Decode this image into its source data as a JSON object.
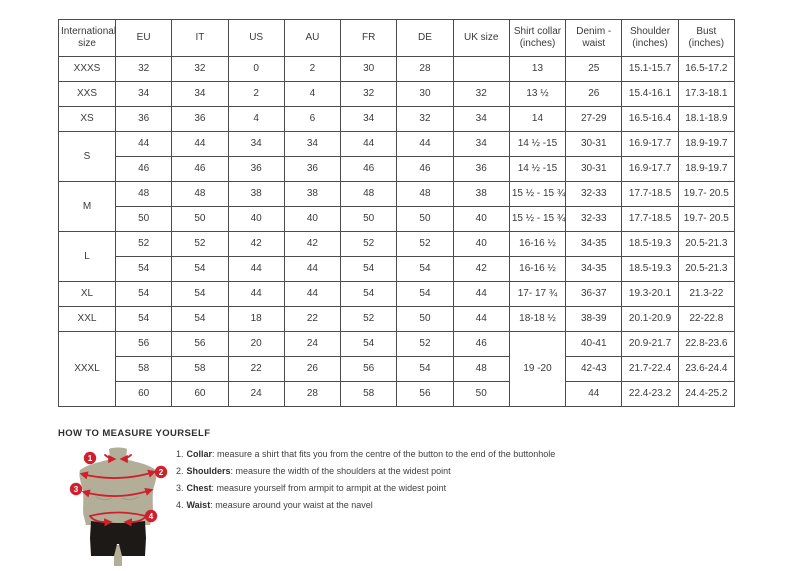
{
  "size_chart": {
    "columns": [
      "International size",
      "EU",
      "IT",
      "US",
      "AU",
      "FR",
      "DE",
      "UK size",
      "Shirt collar (inches)",
      "Denim - waist",
      "Shoulder (inches)",
      "Bust (inches)"
    ],
    "rows": [
      [
        {
          "text": "XXXS"
        },
        {
          "text": "32"
        },
        {
          "text": "32"
        },
        {
          "text": "0"
        },
        {
          "text": "2"
        },
        {
          "text": "30"
        },
        {
          "text": "28"
        },
        {
          "text": ""
        },
        {
          "text": "13"
        },
        {
          "text": "25"
        },
        {
          "text": "15.1-15.7"
        },
        {
          "text": "16.5-17.2"
        }
      ],
      [
        {
          "text": "XXS"
        },
        {
          "text": "34"
        },
        {
          "text": "34"
        },
        {
          "text": "2"
        },
        {
          "text": "4"
        },
        {
          "text": "32"
        },
        {
          "text": "30"
        },
        {
          "text": "32"
        },
        {
          "text": "13 ½"
        },
        {
          "text": "26"
        },
        {
          "text": "15.4-16.1"
        },
        {
          "text": "17.3-18.1"
        }
      ],
      [
        {
          "text": "XS"
        },
        {
          "text": "36"
        },
        {
          "text": "36"
        },
        {
          "text": "4"
        },
        {
          "text": "6"
        },
        {
          "text": "34"
        },
        {
          "text": "32"
        },
        {
          "text": "34"
        },
        {
          "text": "14"
        },
        {
          "text": "27-29"
        },
        {
          "text": "16.5-16.4"
        },
        {
          "text": "18.1-18.9"
        }
      ],
      [
        {
          "text": "S",
          "rowspan": 2
        },
        {
          "text": "44"
        },
        {
          "text": "44"
        },
        {
          "text": "34"
        },
        {
          "text": "34"
        },
        {
          "text": "44"
        },
        {
          "text": "44"
        },
        {
          "text": "34"
        },
        {
          "text": "14 ½ -15"
        },
        {
          "text": "30-31"
        },
        {
          "text": "16.9-17.7"
        },
        {
          "text": "18.9-19.7"
        }
      ],
      [
        {
          "text": "46"
        },
        {
          "text": "46"
        },
        {
          "text": "36"
        },
        {
          "text": "36"
        },
        {
          "text": "46"
        },
        {
          "text": "46"
        },
        {
          "text": "36"
        },
        {
          "text": "14 ½ -15"
        },
        {
          "text": "30-31"
        },
        {
          "text": "16.9-17.7"
        },
        {
          "text": "18.9-19.7"
        }
      ],
      [
        {
          "text": "M",
          "rowspan": 2
        },
        {
          "text": "48"
        },
        {
          "text": "48"
        },
        {
          "text": "38"
        },
        {
          "text": "38"
        },
        {
          "text": "48"
        },
        {
          "text": "48"
        },
        {
          "text": "38"
        },
        {
          "text": "15 ½ - 15 ¾"
        },
        {
          "text": "32-33"
        },
        {
          "text": "17.7-18.5"
        },
        {
          "text": "19.7- 20.5"
        }
      ],
      [
        {
          "text": "50"
        },
        {
          "text": "50"
        },
        {
          "text": "40"
        },
        {
          "text": "40"
        },
        {
          "text": "50"
        },
        {
          "text": "50"
        },
        {
          "text": "40"
        },
        {
          "text": "15 ½ - 15 ¾"
        },
        {
          "text": "32-33"
        },
        {
          "text": "17.7-18.5"
        },
        {
          "text": "19.7- 20.5"
        }
      ],
      [
        {
          "text": "L",
          "rowspan": 2
        },
        {
          "text": "52"
        },
        {
          "text": "52"
        },
        {
          "text": "42"
        },
        {
          "text": "42"
        },
        {
          "text": "52"
        },
        {
          "text": "52"
        },
        {
          "text": "40"
        },
        {
          "text": "16-16 ½"
        },
        {
          "text": "34-35"
        },
        {
          "text": "18.5-19.3"
        },
        {
          "text": "20.5-21.3"
        }
      ],
      [
        {
          "text": "54"
        },
        {
          "text": "54"
        },
        {
          "text": "44"
        },
        {
          "text": "44"
        },
        {
          "text": "54"
        },
        {
          "text": "54"
        },
        {
          "text": "42"
        },
        {
          "text": "16-16 ½"
        },
        {
          "text": "34-35"
        },
        {
          "text": "18.5-19.3"
        },
        {
          "text": "20.5-21.3"
        }
      ],
      [
        {
          "text": "XL"
        },
        {
          "text": "54"
        },
        {
          "text": "54"
        },
        {
          "text": "44"
        },
        {
          "text": "44"
        },
        {
          "text": "54"
        },
        {
          "text": "54"
        },
        {
          "text": "44"
        },
        {
          "text": "17- 17 ¾"
        },
        {
          "text": "36-37"
        },
        {
          "text": "19.3-20.1"
        },
        {
          "text": "21.3-22"
        }
      ],
      [
        {
          "text": "XXL"
        },
        {
          "text": "54"
        },
        {
          "text": "54"
        },
        {
          "text": "18"
        },
        {
          "text": "22"
        },
        {
          "text": "52"
        },
        {
          "text": "50"
        },
        {
          "text": "44"
        },
        {
          "text": "18-18 ½"
        },
        {
          "text": "38-39"
        },
        {
          "text": "20.1-20.9"
        },
        {
          "text": "22-22.8"
        }
      ],
      [
        {
          "text": "XXXL",
          "rowspan": 3
        },
        {
          "text": "56"
        },
        {
          "text": "56"
        },
        {
          "text": "20"
        },
        {
          "text": "24"
        },
        {
          "text": "54"
        },
        {
          "text": "52"
        },
        {
          "text": "46"
        },
        {
          "text": "19 -20",
          "rowspan": 3
        },
        {
          "text": "40-41"
        },
        {
          "text": "20.9-21.7"
        },
        {
          "text": "22.8-23.6"
        }
      ],
      [
        {
          "text": "58"
        },
        {
          "text": "58"
        },
        {
          "text": "22"
        },
        {
          "text": "26"
        },
        {
          "text": "56"
        },
        {
          "text": "54"
        },
        {
          "text": "48"
        },
        {
          "text": "42-43"
        },
        {
          "text": "21.7-22.4"
        },
        {
          "text": "23.6-24.4"
        }
      ],
      [
        {
          "text": "60"
        },
        {
          "text": "60"
        },
        {
          "text": "24"
        },
        {
          "text": "28"
        },
        {
          "text": "58"
        },
        {
          "text": "56"
        },
        {
          "text": "50"
        },
        {
          "text": "44"
        },
        {
          "text": "22.4-23.2"
        },
        {
          "text": "24.4-25.2"
        }
      ]
    ]
  },
  "measure": {
    "title": "HOW TO MEASURE YOURSELF",
    "badges": [
      "1",
      "2",
      "3",
      "4"
    ],
    "instructions": [
      {
        "num": "1.",
        "label": "Collar",
        "rest": ": measure a shirt that fits you from the centre of the button to the end of the buttonhole"
      },
      {
        "num": "2.",
        "label": "Shoulders",
        "rest": ": measure the width of the shoulders at the widest point"
      },
      {
        "num": "3.",
        "label": "Chest",
        "rest": ": measure yourself from armpit to armpit at the widest point"
      },
      {
        "num": "4.",
        "label": "Waist",
        "rest": ": measure around your waist at the navel"
      }
    ]
  },
  "colors": {
    "accent_red": "#d0202d",
    "mannequin_body": "#b2ae98",
    "mannequin_shorts": "#1c1917",
    "table_border": "#4c4c4c",
    "text": "#3a3a3a"
  }
}
